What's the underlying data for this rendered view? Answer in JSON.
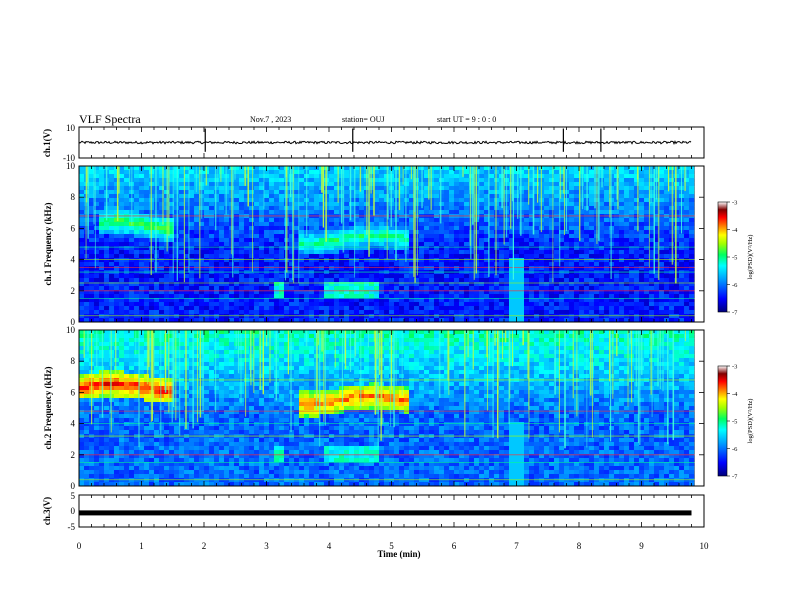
{
  "header": {
    "title": "VLF Spectra",
    "date": "Nov.7 , 2023",
    "station": "station= OUJ",
    "start": "start UT = 9 : 0 : 0"
  },
  "colors": {
    "background": "#ffffff",
    "axes": "#000000",
    "colormap": [
      "#00007a",
      "#0000ff",
      "#00a0ff",
      "#00ffff",
      "#00ff60",
      "#a0ff00",
      "#ffff00",
      "#ff8000",
      "#ff0000",
      "#800000",
      "#ffffff"
    ]
  },
  "chart_data": [
    {
      "type": "line",
      "id": "ch1-waveform",
      "ylabel": "ch.1(V)",
      "ylim": [
        -10,
        10
      ],
      "yticks": [
        "10",
        "-10"
      ],
      "x": [
        0,
        1,
        2,
        3,
        4,
        5,
        6,
        7,
        8,
        9,
        10
      ],
      "series": [
        {
          "values": [
            0,
            0,
            0,
            0,
            0,
            0,
            0,
            0,
            0,
            0,
            0
          ]
        }
      ],
      "spikes_x": [
        2.02,
        4.38,
        7.75,
        8.35
      ]
    },
    {
      "type": "heatmap",
      "id": "ch1-spectrogram",
      "ylabel": "ch.1 Frequency (kHz)",
      "ylim": [
        0,
        10
      ],
      "yticks": [
        "0",
        "2",
        "4",
        "6",
        "8",
        "10"
      ],
      "colorbar": {
        "label": "log(PSD)(V²/Hz)",
        "ticks": [
          "-3",
          "-4",
          "-5",
          "-6",
          "-7"
        ],
        "range": [
          -7,
          -3
        ]
      },
      "emission_bands": [
        {
          "x_start": 0.35,
          "x_end": 1.5,
          "f_center_khz": 6.2,
          "level": -4.8
        },
        {
          "x_start": 3.5,
          "x_end": 5.3,
          "f_center_khz": 5.3,
          "level": -5.0
        }
      ],
      "continuous_lines_khz": [
        0.4,
        1.5,
        2.0,
        2.5,
        3.2,
        3.5,
        4.0,
        4.8,
        6.8
      ]
    },
    {
      "type": "heatmap",
      "id": "ch2-spectrogram",
      "ylabel": "ch.2 Frequency (kHz)",
      "ylim": [
        0,
        10
      ],
      "yticks": [
        "0",
        "2",
        "4",
        "6",
        "8",
        "10"
      ],
      "colorbar": {
        "label": "log(PSD)(V²/Hz)",
        "ticks": [
          "-3",
          "-4",
          "-5",
          "-6",
          "-7"
        ],
        "range": [
          -7,
          -3
        ]
      },
      "emission_bands": [
        {
          "x_start": 0.0,
          "x_end": 1.5,
          "f_center_khz": 6.3,
          "level": -3.6
        },
        {
          "x_start": 3.5,
          "x_end": 5.3,
          "f_center_khz": 5.5,
          "level": -3.8
        }
      ],
      "continuous_lines_khz": [
        0.4,
        1.5,
        2.0,
        3.2,
        4.0,
        4.8,
        6.8
      ]
    },
    {
      "type": "line",
      "id": "ch3-waveform",
      "ylabel": "ch.3(V)",
      "ylim": [
        -5,
        5
      ],
      "yticks": [
        "5",
        "0",
        "-5"
      ],
      "x": [
        0,
        10
      ],
      "series": [
        {
          "values": [
            -0.6,
            -0.6
          ]
        }
      ]
    }
  ],
  "xaxis": {
    "label": "Time (min)",
    "ticks": [
      "0",
      "1",
      "2",
      "3",
      "4",
      "5",
      "6",
      "7",
      "8",
      "9",
      "10"
    ],
    "range": [
      0,
      10
    ]
  }
}
